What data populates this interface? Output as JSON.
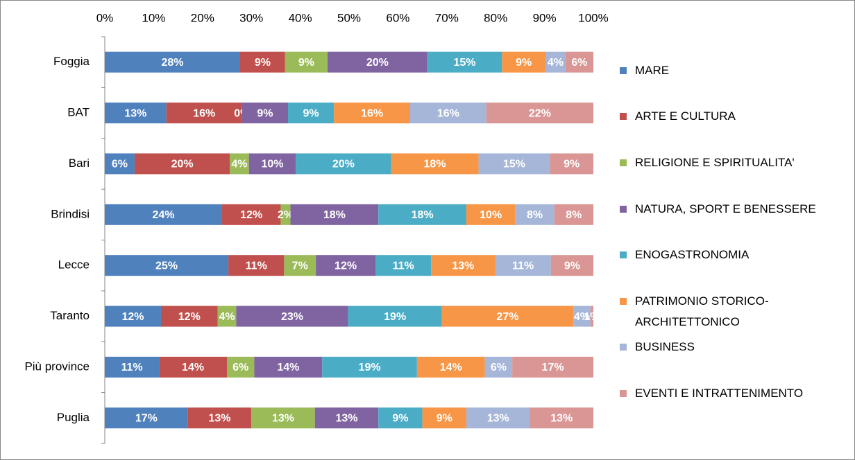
{
  "chart_data": {
    "type": "stacked-bar-horizontal",
    "categories": [
      "Foggia",
      "BAT",
      "Bari",
      "Brindisi",
      "Lecce",
      "Taranto",
      "Più province",
      "Puglia"
    ],
    "xlim": [
      0,
      100
    ],
    "xticks": [
      {
        "value": 0,
        "label": "0%"
      },
      {
        "value": 10,
        "label": "10%"
      },
      {
        "value": 20,
        "label": "20%"
      },
      {
        "value": 30,
        "label": "30%"
      },
      {
        "value": 40,
        "label": "40%"
      },
      {
        "value": 50,
        "label": "50%"
      },
      {
        "value": 60,
        "label": "60%"
      },
      {
        "value": 70,
        "label": "70%"
      },
      {
        "value": 80,
        "label": "80%"
      },
      {
        "value": 90,
        "label": "90%"
      },
      {
        "value": 100,
        "label": "100%"
      }
    ],
    "series": [
      {
        "name": "MARE",
        "color": "#4f81bd",
        "values": [
          27.7,
          12.6,
          6.1,
          24,
          25.3,
          11.5,
          11.1,
          17
        ],
        "value_labels": [
          "28%",
          "13%",
          "6%",
          "24%",
          "25%",
          "12%",
          "11%",
          "17%"
        ]
      },
      {
        "name": "ARTE E CULTURA",
        "color": "#c0504d",
        "values": [
          9.2,
          15.5,
          19.5,
          12,
          11.4,
          11.6,
          13.9,
          13
        ],
        "value_labels": [
          "9%",
          "16%",
          "20%",
          "12%",
          "11%",
          "12%",
          "14%",
          "13%"
        ]
      },
      {
        "name": "RELIGIONE E SPIRITUALITA'",
        "color": "#9bbb59",
        "values": [
          8.7,
          0,
          3.9,
          2,
          6.5,
          3.8,
          5.6,
          13
        ],
        "value_labels": [
          "9%",
          "0%",
          "4%",
          "2%",
          "7%",
          "4%",
          "6%",
          "13%"
        ]
      },
      {
        "name": "NATURA, SPORT E BENESSERE",
        "color": "#8064a2",
        "values": [
          20.4,
          9.4,
          9.6,
          18,
          12.2,
          22.9,
          13.9,
          13
        ],
        "value_labels": [
          "20%",
          "9%",
          "10%",
          "18%",
          "12%",
          "23%",
          "14%",
          "13%"
        ]
      },
      {
        "name": "ENOGASTRONOMIA",
        "color": "#4bacc6",
        "values": [
          15.3,
          9.4,
          19.5,
          18,
          11.4,
          19.2,
          19.4,
          9
        ],
        "value_labels": [
          "15%",
          "9%",
          "20%",
          "18%",
          "11%",
          "19%",
          "19%",
          "9%"
        ]
      },
      {
        "name": "PATRIMONIO STORICO-ARCHITETTONICO",
        "color": "#f79646",
        "values": [
          8.9,
          15.6,
          17.9,
          10,
          13.1,
          26.9,
          13.9,
          9
        ],
        "value_labels": [
          "9%",
          "16%",
          "18%",
          "10%",
          "13%",
          "27%",
          "14%",
          "9%"
        ]
      },
      {
        "name": "BUSINESS",
        "color": "#a5b6d8",
        "values": [
          4.1,
          15.6,
          14.6,
          8,
          11.4,
          3.5,
          5.6,
          13
        ],
        "value_labels": [
          "4%",
          "16%",
          "15%",
          "8%",
          "11%",
          "4%",
          "6%",
          "13%"
        ]
      },
      {
        "name": "EVENTI E INTRATTENIMENTO",
        "color": "#d99694",
        "values": [
          5.7,
          21.9,
          8.9,
          8,
          8.7,
          0.6,
          16.6,
          13
        ],
        "value_labels": [
          "6%",
          "22%",
          "9%",
          "8%",
          "9%",
          "1%",
          "17%",
          "13%"
        ]
      }
    ]
  }
}
